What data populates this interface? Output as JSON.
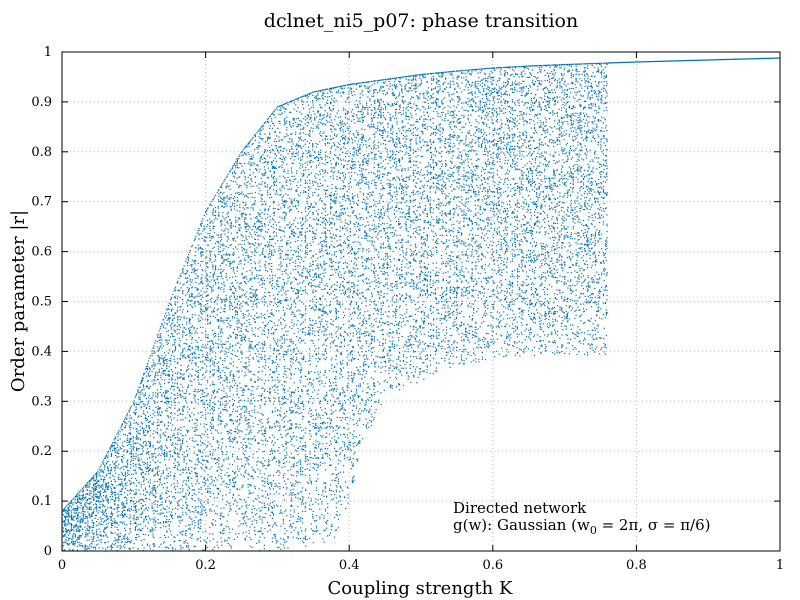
{
  "chart_data": {
    "type": "scatter",
    "title": "dclnet_ni5_p07: phase transition",
    "xlabel": "Coupling strength K",
    "ylabel": "Order parameter |r|",
    "xlim": [
      0,
      1
    ],
    "ylim": [
      0,
      1
    ],
    "xticks": [
      "0",
      "0.2",
      "0.4",
      "0.6",
      "0.8",
      "1"
    ],
    "yticks": [
      "0",
      "0.1",
      "0.2",
      "0.3",
      "0.4",
      "0.5",
      "0.6",
      "0.7",
      "0.8",
      "0.9",
      "1"
    ],
    "grid": true,
    "marker_color": "#0072b2",
    "annotation": {
      "line1": "Directed network",
      "line2_prefix": "g(w): Gaussian (w",
      "line2_sub": "0",
      "line2_suffix": " = 2π, σ = π/6)"
    },
    "upper_envelope": {
      "K": [
        0.0,
        0.05,
        0.1,
        0.15,
        0.2,
        0.25,
        0.3,
        0.35,
        0.4,
        0.45,
        0.5,
        0.55,
        0.6,
        0.65,
        0.7,
        0.76
      ],
      "r": [
        0.08,
        0.16,
        0.3,
        0.5,
        0.68,
        0.8,
        0.89,
        0.92,
        0.935,
        0.945,
        0.955,
        0.962,
        0.968,
        0.972,
        0.975,
        0.978
      ]
    },
    "lower_envelope": {
      "K": [
        0.0,
        0.3,
        0.38,
        0.4,
        0.42,
        0.45,
        0.5,
        0.55,
        0.6,
        0.65,
        0.7,
        0.76
      ],
      "r": [
        0.0,
        0.0,
        0.02,
        0.1,
        0.22,
        0.3,
        0.34,
        0.37,
        0.385,
        0.39,
        0.392,
        0.392
      ]
    },
    "synchronized_branch": {
      "K": [
        0.76,
        0.8,
        0.85,
        0.9,
        0.95,
        1.0
      ],
      "r": [
        0.978,
        0.98,
        0.982,
        0.984,
        0.986,
        0.988
      ]
    }
  }
}
